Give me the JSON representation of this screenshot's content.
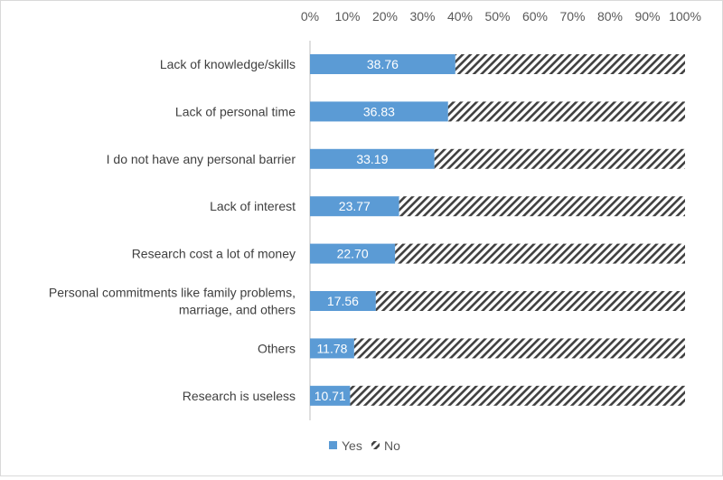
{
  "chart_data": {
    "type": "bar",
    "stacked": true,
    "orientation": "horizontal",
    "title": "",
    "xlabel": "",
    "ylabel": "",
    "categories": [
      "Lack of knowledge/skills",
      "Lack of personal time",
      "I do not have any personal barrier",
      "Lack of interest",
      "Research cost a lot of money",
      "Personal commitments like family problems, marriage, and others",
      "Others",
      "Research is useless"
    ],
    "category_lines": [
      [
        "Lack of knowledge/skills"
      ],
      [
        "Lack of personal time"
      ],
      [
        "I do not have any personal barrier"
      ],
      [
        "Lack of interest"
      ],
      [
        "Research cost a lot of money"
      ],
      [
        "Personal commitments like family problems,",
        "marriage, and others"
      ],
      [
        "Others"
      ],
      [
        "Research is useless"
      ]
    ],
    "series": [
      {
        "name": "Yes",
        "values": [
          38.76,
          36.83,
          33.19,
          23.77,
          22.7,
          17.56,
          11.78,
          10.71
        ],
        "color": "#5b9bd5"
      },
      {
        "name": "No",
        "values": [
          61.24,
          63.17,
          66.81,
          76.23,
          77.3,
          82.44,
          88.22,
          89.29
        ],
        "color": "#404040",
        "pattern": "hatched"
      }
    ],
    "data_labels": [
      "38.76",
      "36.83",
      "33.19",
      "23.77",
      "22.70",
      "17.56",
      "11.78",
      "10.71"
    ],
    "xlim": [
      0,
      100
    ],
    "xticks": [
      "0%",
      "10%",
      "20%",
      "30%",
      "40%",
      "50%",
      "60%",
      "70%",
      "80%",
      "90%",
      "100%"
    ],
    "x_axis_position": "top",
    "grid": false,
    "legend_position": "bottom"
  }
}
